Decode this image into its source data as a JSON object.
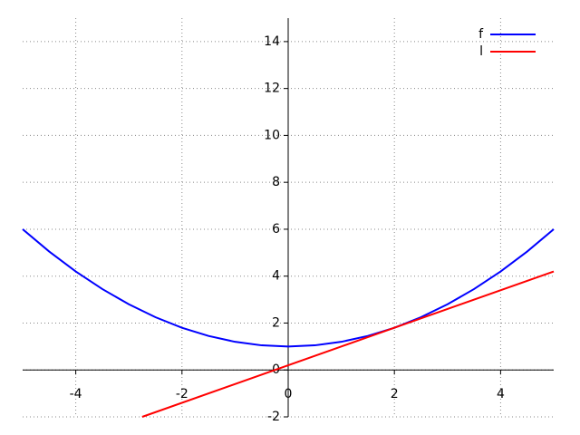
{
  "chart_data": {
    "type": "line",
    "series": [
      {
        "name": "f",
        "color": "#0000ff",
        "x": [
          -5,
          -4.5,
          -4,
          -3.5,
          -3,
          -2.5,
          -2,
          -1.5,
          -1,
          -0.5,
          0,
          0.5,
          1,
          1.5,
          2,
          2.5,
          3,
          3.5,
          4,
          4.5,
          5
        ],
        "values": [
          6,
          5.05,
          4.2,
          3.45,
          2.8,
          2.25,
          1.8,
          1.45,
          1.2,
          1.05,
          1,
          1.05,
          1.2,
          1.45,
          1.8,
          2.25,
          2.8,
          3.45,
          4.2,
          5.05,
          6
        ]
      },
      {
        "name": "l",
        "color": "#ff0000",
        "x": [
          -2.75,
          5
        ],
        "values": [
          -2,
          4.2
        ]
      }
    ],
    "xlim": [
      -5,
      5
    ],
    "ylim": [
      -2,
      15
    ],
    "xticks": [
      -4,
      -2,
      0,
      2,
      4
    ],
    "yticks": [
      -2,
      0,
      2,
      4,
      6,
      8,
      10,
      12,
      14
    ],
    "grid": true,
    "legend": "upper right"
  }
}
